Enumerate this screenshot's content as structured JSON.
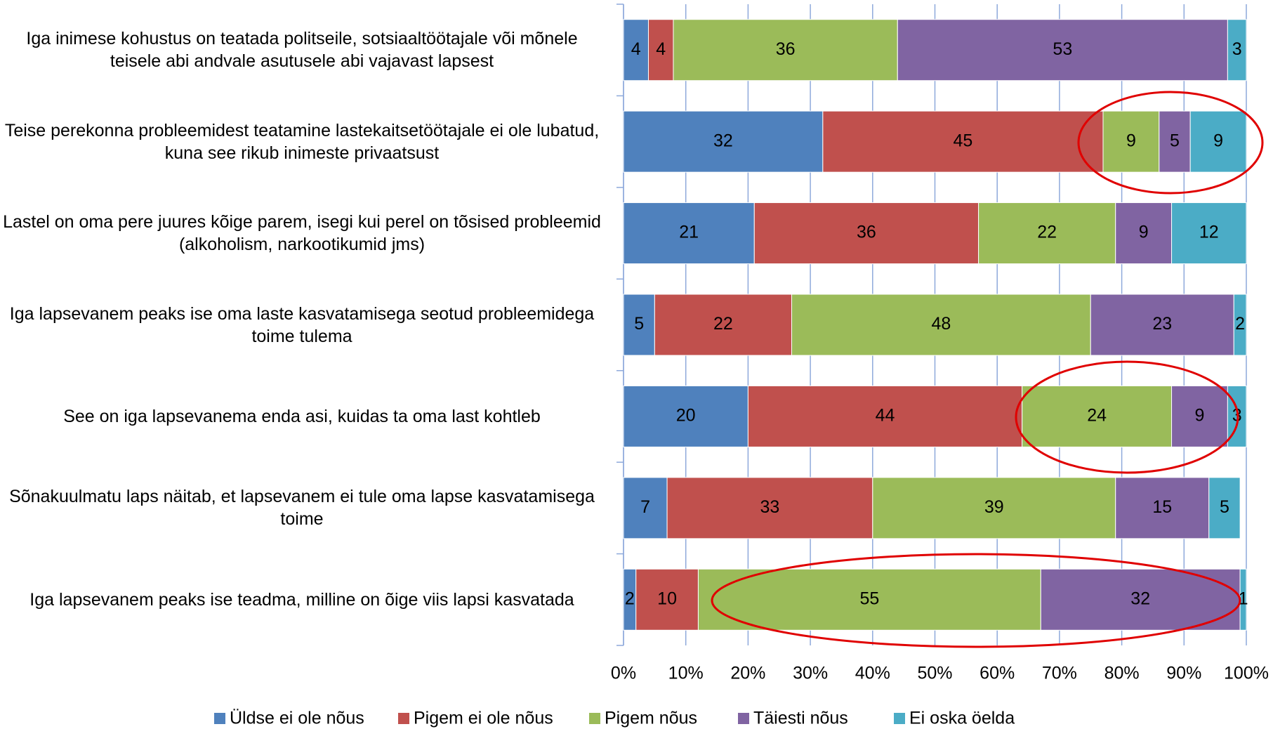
{
  "chart_data": {
    "type": "stacked-barh",
    "categories": [
      "Iga inimese kohustus on teatada politseile, sotsiaaltöötajale või mõnele teisele abi andvale asutusele abi vajavast lapsest",
      "Teise perekonna probleemidest teatamine lastekaitsetöötajale ei ole lubatud, kuna see rikub inimeste privaatsust",
      "Lastel on oma pere juures kõige parem, isegi kui perel on tõsised probleemid (alkoholism, narkootikumid jms)",
      "Iga lapsevanem peaks ise oma laste kasvatamisega seotud probleemidega toime tulema",
      "See on iga lapsevanema enda asi, kuidas ta oma last kohtleb",
      "Sõnakuulmatu laps näitab, et lapsevanem ei tule oma lapse kasvatamisega toime",
      "Iga lapsevanem peaks ise teadma, milline on õige viis lapsi kasvatada"
    ],
    "series": [
      {
        "name": "Üldse ei ole nõus",
        "color": "#4f81bd",
        "values": [
          4,
          32,
          21,
          5,
          20,
          7,
          2
        ]
      },
      {
        "name": "Pigem ei ole nõus",
        "color": "#c0504d",
        "values": [
          4,
          45,
          36,
          22,
          44,
          33,
          10
        ]
      },
      {
        "name": "Pigem nõus",
        "color": "#9bbb59",
        "values": [
          36,
          9,
          22,
          48,
          24,
          39,
          55
        ]
      },
      {
        "name": "Täiesti nõus",
        "color": "#8064a2",
        "values": [
          53,
          5,
          9,
          23,
          9,
          15,
          32
        ]
      },
      {
        "name": "Ei oska öelda",
        "color": "#4bacc6",
        "values": [
          3,
          9,
          12,
          2,
          3,
          5,
          1
        ]
      }
    ],
    "xlim": [
      0,
      100
    ],
    "xticks": [
      {
        "value": 0,
        "label": "0%"
      },
      {
        "value": 10,
        "label": "10%"
      },
      {
        "value": 20,
        "label": "20%"
      },
      {
        "value": 30,
        "label": "30%"
      },
      {
        "value": 40,
        "label": "40%"
      },
      {
        "value": 50,
        "label": "50%"
      },
      {
        "value": 60,
        "label": "60%"
      },
      {
        "value": 70,
        "label": "70%"
      },
      {
        "value": 80,
        "label": "80%"
      },
      {
        "value": 90,
        "label": "90%"
      },
      {
        "value": 100,
        "label": "100%"
      }
    ],
    "grid": true,
    "legend": "bottom"
  }
}
